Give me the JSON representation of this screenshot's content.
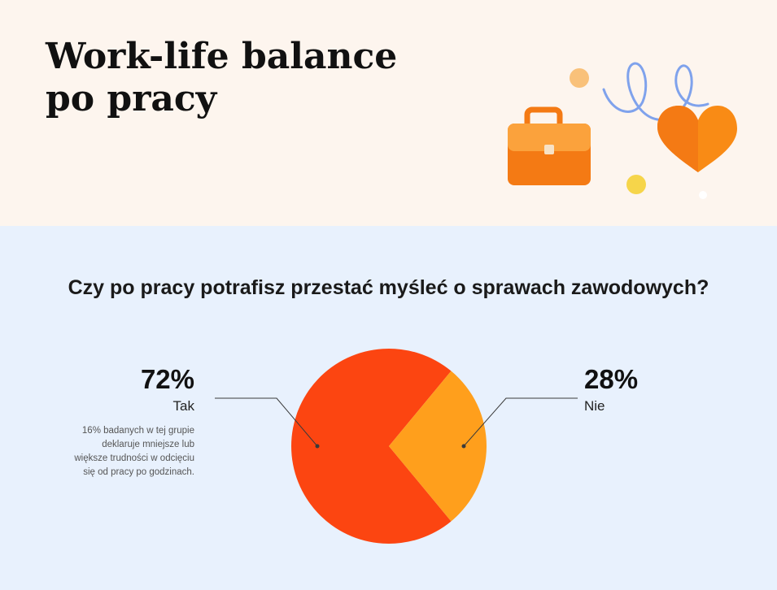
{
  "header": {
    "title_line1": "Work-life balance",
    "title_line2": "po pracy"
  },
  "colors": {
    "header_bg": "#fdf5ee",
    "main_bg": "#e8f1fd",
    "tak": "#fc4511",
    "nie": "#ff9f1c",
    "briefcase": "#f47a14",
    "heart": "#f98b15",
    "squiggle": "#7fa2ec",
    "dot": "#f6d54a"
  },
  "illustration": {
    "icons": [
      "briefcase-icon",
      "heart-icon",
      "squiggle-icon",
      "dot-icon"
    ]
  },
  "chart_data": {
    "type": "pie",
    "title": "Czy po pracy potrafisz przestać myśleć o sprawach zawodowych?",
    "series": [
      {
        "name": "Tak",
        "value": 72,
        "label": "72%"
      },
      {
        "name": "Nie",
        "value": 28,
        "label": "28%"
      }
    ],
    "annotation": {
      "lines": [
        "16% badanych w tej grupie",
        "deklaruje mniejsze lub",
        "większe trudności w odcięciu",
        "się od pracy po godzinach."
      ]
    }
  }
}
